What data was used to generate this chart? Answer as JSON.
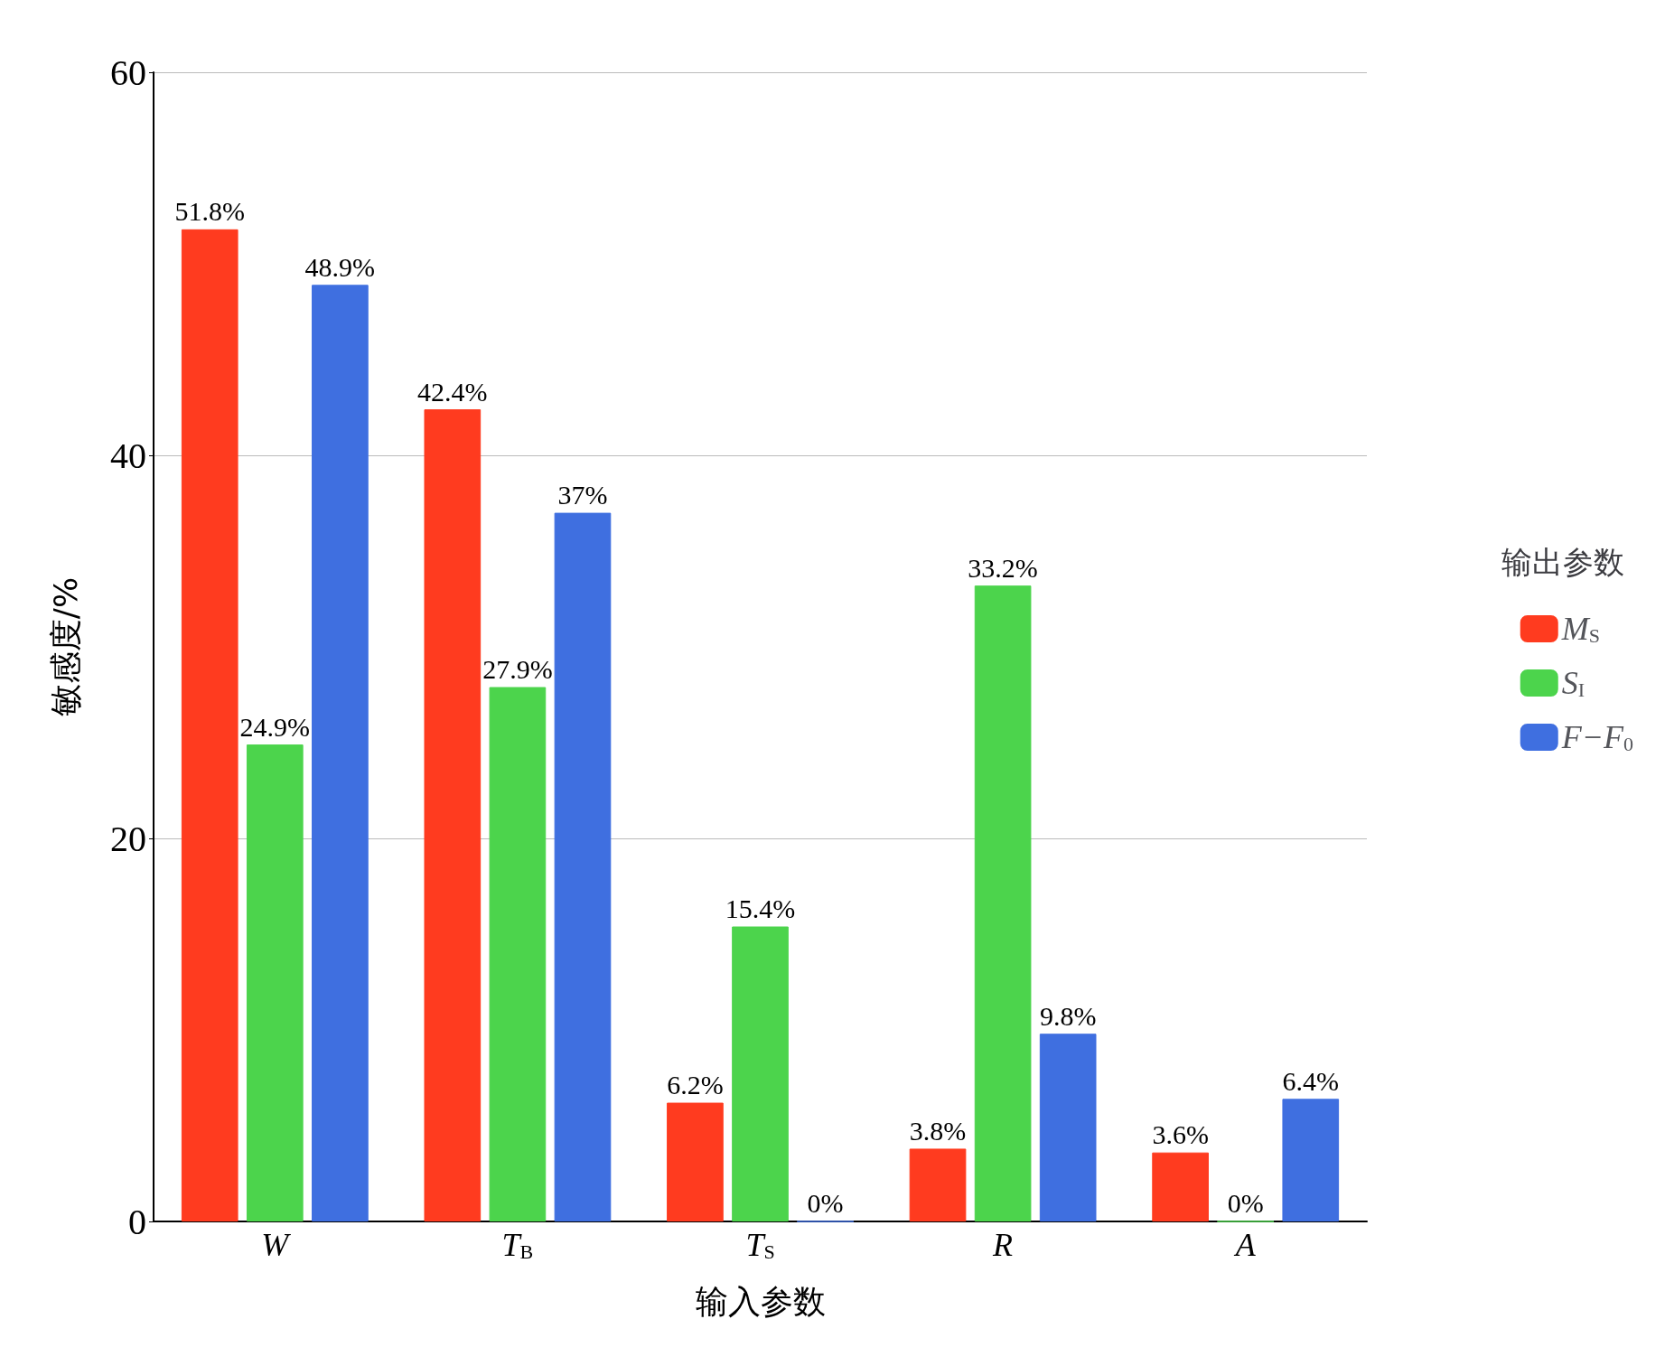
{
  "chart_data": {
    "type": "bar",
    "xlabel": "输入参数",
    "ylabel": "敏感度/%",
    "legend_title": "输出参数",
    "categories": [
      "W",
      "T$_{B}$",
      "T$_{S}$",
      "R",
      "A"
    ],
    "series": [
      {
        "name": "M$_{S}$",
        "color": "#ff3b1f",
        "values": [
          51.8,
          42.4,
          6.2,
          3.8,
          3.6
        ],
        "value_labels": [
          "51.8%",
          "42.4%",
          "6.2%",
          "3.8%",
          "3.6%"
        ]
      },
      {
        "name": "S$_{I}$",
        "color": "#4cd44c",
        "values": [
          24.9,
          27.9,
          15.4,
          33.2,
          0
        ],
        "value_labels": [
          "24.9%",
          "27.9%",
          "15.4%",
          "33.2%",
          "0%"
        ]
      },
      {
        "name": "F−F$_{0}$",
        "color": "#3f6fe0",
        "values": [
          48.9,
          37,
          0,
          9.8,
          6.4
        ],
        "value_labels": [
          "48.9%",
          "37%",
          "0%",
          "9.8%",
          "6.4%"
        ]
      }
    ],
    "ylim": [
      0,
      60
    ],
    "yticks": [
      0,
      20,
      40,
      60
    ],
    "grid": "y",
    "legend": "right"
  }
}
